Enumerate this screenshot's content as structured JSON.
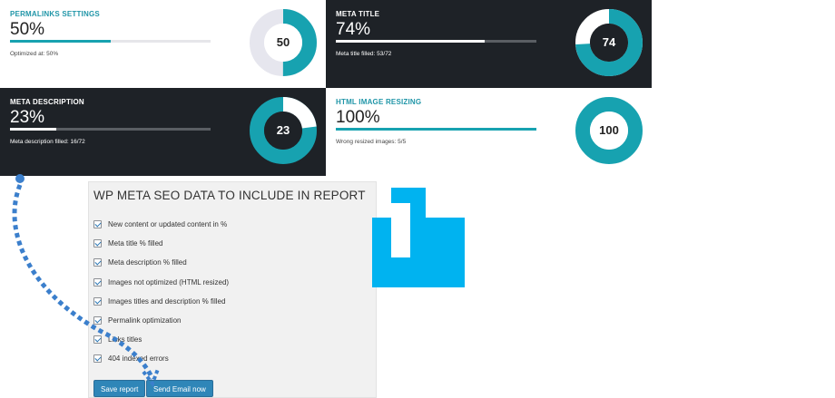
{
  "cards": [
    {
      "title": "PERMALINKS SETTINGS",
      "value": "50%",
      "subtitle": "Optimized at: 50%",
      "donut": "50",
      "percent": 50,
      "theme": "light"
    },
    {
      "title": "META TITLE",
      "value": "74%",
      "subtitle": "Meta title filled: 53/72",
      "donut": "74",
      "percent": 74,
      "theme": "dark"
    },
    {
      "title": "META DESCRIPTION",
      "value": "23%",
      "subtitle": "Meta description filled: 16/72",
      "donut": "23",
      "percent": 23,
      "theme": "dark"
    },
    {
      "title": "HTML IMAGE RESIZING",
      "value": "100%",
      "subtitle": "Wrong resized images: 5/5",
      "donut": "100",
      "percent": 100,
      "theme": "light"
    }
  ],
  "report": {
    "title": "WP META SEO DATA TO INCLUDE IN REPORT",
    "options": [
      {
        "label": "New content or updated content in %",
        "checked": true
      },
      {
        "label": "Meta title % filled",
        "checked": true
      },
      {
        "label": "Meta description % filled",
        "checked": true
      },
      {
        "label": "Images not optimized (HTML resized)",
        "checked": true
      },
      {
        "label": "Images titles and description % filled",
        "checked": true
      },
      {
        "label": "Permalink optimization",
        "checked": true
      },
      {
        "label": "Links titles",
        "checked": true
      },
      {
        "label": "404 indexed errors",
        "checked": true
      }
    ],
    "save_label": "Save report",
    "send_label": "Send Email now"
  },
  "colors": {
    "accent": "#17a2b0",
    "dark_bg": "#1e2227",
    "button": "#2f86b8",
    "logo": "#00b3f0",
    "arrow": "#3b7fcc"
  }
}
